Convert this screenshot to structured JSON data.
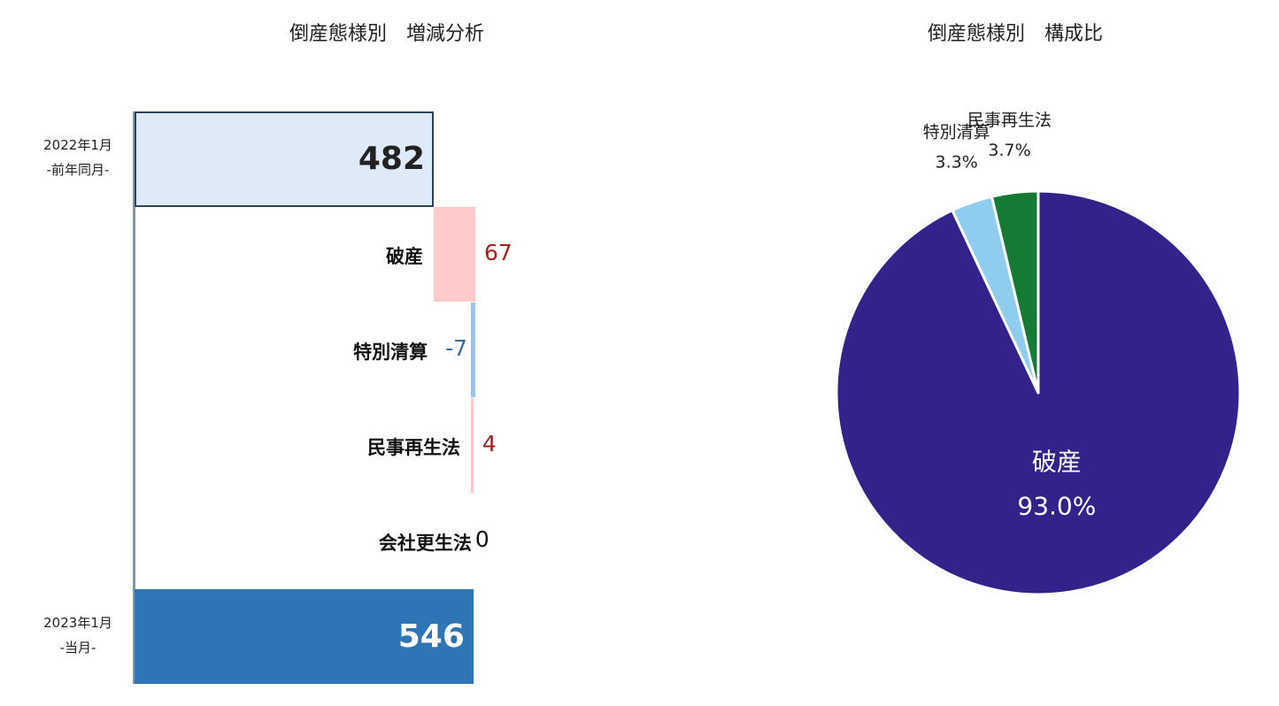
{
  "titles": {
    "waterfall": "倒産態様別　増減分析",
    "pie": "倒産態様別　構成比"
  },
  "periods": {
    "start": {
      "line1": "2022年1月",
      "line2": "-前年同月-"
    },
    "end": {
      "line1": "2023年1月",
      "line2": "-当月-"
    }
  },
  "chart_data": [
    {
      "type": "bar",
      "subtype": "waterfall",
      "title": "倒産態様別　増減分析",
      "start": {
        "label": "2022年1月 -前年同月-",
        "value": 482
      },
      "end": {
        "label": "2023年1月 -当月-",
        "value": 546
      },
      "deltas": [
        {
          "category": "破産",
          "value": 67,
          "label": "67"
        },
        {
          "category": "特別清算",
          "value": -7,
          "label": "-7"
        },
        {
          "category": "民事再生法",
          "value": 4,
          "label": "4"
        },
        {
          "category": "会社更生法",
          "value": 0,
          "label": "0"
        }
      ],
      "xlim": [
        0,
        620
      ],
      "grid": false,
      "colors": {
        "start_fill": "#deeaf7",
        "start_border": "#2a4460",
        "end_fill": "#2e75b6",
        "increase": "#ffcaca",
        "decrease": "#9dc3e6",
        "increase_text": "#a41e1e",
        "decrease_text": "#3b6a9e"
      }
    },
    {
      "type": "pie",
      "title": "倒産態様別　構成比",
      "start_angle": "12 o'clock",
      "direction": "clockwise",
      "slices": [
        {
          "label": "破産",
          "percent": 93.0,
          "display": "93.0%",
          "color": "#32228a"
        },
        {
          "label": "特別清算",
          "percent": 3.3,
          "display": "3.3%",
          "color": "#8ecdee"
        },
        {
          "label": "民事再生法",
          "percent": 3.7,
          "display": "3.7%",
          "color": "#157a34"
        }
      ]
    }
  ]
}
